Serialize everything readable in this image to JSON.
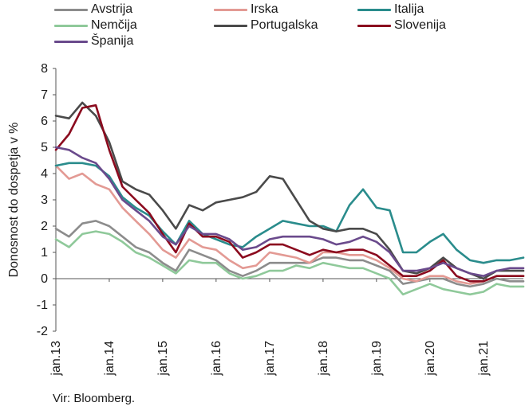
{
  "chart_data": {
    "type": "line",
    "title": "",
    "xlabel": "",
    "ylabel": "Donosnost do dospetja v %",
    "ylim": [
      -2,
      8
    ],
    "yticks": [
      -2,
      -1,
      0,
      1,
      2,
      3,
      4,
      5,
      6,
      7,
      8
    ],
    "xlim": [
      "2013-01",
      "2021-10"
    ],
    "xticks": [
      "jan.13",
      "jan.14",
      "jan.15",
      "jan.16",
      "jan.17",
      "jan.18",
      "jan.19",
      "jan.20",
      "jan.21"
    ],
    "legend_position": "top",
    "grid": false,
    "source": "Vir: Bloomberg.",
    "x": [
      "2013-01",
      "2013-04",
      "2013-07",
      "2013-10",
      "2014-01",
      "2014-04",
      "2014-07",
      "2014-10",
      "2015-01",
      "2015-04",
      "2015-07",
      "2015-10",
      "2016-01",
      "2016-04",
      "2016-07",
      "2016-10",
      "2017-01",
      "2017-04",
      "2017-07",
      "2017-10",
      "2018-01",
      "2018-04",
      "2018-07",
      "2018-10",
      "2019-01",
      "2019-04",
      "2019-07",
      "2019-10",
      "2020-01",
      "2020-04",
      "2020-07",
      "2020-10",
      "2021-01",
      "2021-04",
      "2021-07",
      "2021-10"
    ],
    "series": [
      {
        "name": "Avstrija",
        "color": "#8c8c8c",
        "values": [
          1.9,
          1.6,
          2.1,
          2.2,
          2.0,
          1.6,
          1.2,
          1.0,
          0.6,
          0.3,
          1.1,
          0.9,
          0.7,
          0.3,
          0.1,
          0.3,
          0.6,
          0.6,
          0.6,
          0.6,
          0.8,
          0.8,
          0.7,
          0.7,
          0.5,
          0.3,
          -0.2,
          -0.1,
          0.0,
          0.0,
          -0.2,
          -0.3,
          -0.2,
          0.0,
          -0.1,
          -0.1
        ]
      },
      {
        "name": "Irska",
        "color": "#e39a94",
        "values": [
          4.3,
          3.8,
          4.0,
          3.6,
          3.4,
          2.7,
          2.2,
          1.7,
          1.1,
          0.8,
          1.5,
          1.2,
          1.1,
          0.7,
          0.4,
          0.5,
          1.0,
          0.9,
          0.8,
          0.6,
          1.0,
          1.0,
          0.9,
          0.9,
          0.7,
          0.4,
          0.0,
          -0.1,
          0.1,
          0.1,
          -0.1,
          -0.2,
          -0.1,
          0.1,
          0.1,
          0.1
        ]
      },
      {
        "name": "Italija",
        "color": "#2a8c8c",
        "values": [
          4.3,
          4.4,
          4.4,
          4.3,
          3.9,
          3.1,
          2.7,
          2.4,
          1.8,
          1.3,
          2.2,
          1.7,
          1.5,
          1.3,
          1.2,
          1.6,
          1.9,
          2.2,
          2.1,
          2.0,
          2.0,
          1.8,
          2.8,
          3.4,
          2.7,
          2.6,
          1.0,
          1.0,
          1.4,
          1.7,
          1.1,
          0.7,
          0.6,
          0.7,
          0.7,
          0.8
        ]
      },
      {
        "name": "Nemčija",
        "color": "#8fc99a",
        "values": [
          1.5,
          1.2,
          1.7,
          1.8,
          1.7,
          1.4,
          1.0,
          0.8,
          0.5,
          0.2,
          0.7,
          0.6,
          0.6,
          0.2,
          0.0,
          0.1,
          0.3,
          0.3,
          0.5,
          0.4,
          0.6,
          0.5,
          0.4,
          0.4,
          0.2,
          0.0,
          -0.6,
          -0.4,
          -0.2,
          -0.4,
          -0.5,
          -0.6,
          -0.5,
          -0.2,
          -0.3,
          -0.3
        ]
      },
      {
        "name": "Portugalska",
        "color": "#4a4a4a",
        "values": [
          6.2,
          6.1,
          6.7,
          6.2,
          5.2,
          3.7,
          3.4,
          3.2,
          2.6,
          1.9,
          2.8,
          2.6,
          2.9,
          3.0,
          3.1,
          3.3,
          3.9,
          3.8,
          3.0,
          2.2,
          1.9,
          1.8,
          1.9,
          1.9,
          1.7,
          1.1,
          0.3,
          0.2,
          0.4,
          0.8,
          0.4,
          0.2,
          0.0,
          0.3,
          0.3,
          0.3
        ]
      },
      {
        "name": "Slovenija",
        "color": "#8b0a1e",
        "values": [
          4.9,
          5.5,
          6.5,
          6.6,
          4.9,
          3.5,
          3.0,
          2.5,
          1.7,
          1.0,
          2.1,
          1.6,
          1.6,
          1.4,
          0.8,
          1.0,
          1.3,
          1.3,
          1.1,
          0.9,
          1.1,
          1.0,
          1.1,
          1.1,
          0.9,
          0.5,
          0.1,
          0.1,
          0.3,
          0.7,
          0.1,
          -0.1,
          -0.1,
          0.1,
          0.1,
          0.1
        ]
      },
      {
        "name": "Španija",
        "color": "#6a4a8c",
        "values": [
          5.0,
          4.9,
          4.6,
          4.4,
          3.8,
          3.0,
          2.6,
          2.2,
          1.6,
          1.3,
          2.0,
          1.7,
          1.7,
          1.5,
          1.1,
          1.2,
          1.5,
          1.6,
          1.6,
          1.6,
          1.5,
          1.3,
          1.4,
          1.6,
          1.4,
          1.0,
          0.3,
          0.3,
          0.4,
          0.6,
          0.4,
          0.2,
          0.1,
          0.3,
          0.4,
          0.4
        ]
      }
    ]
  }
}
